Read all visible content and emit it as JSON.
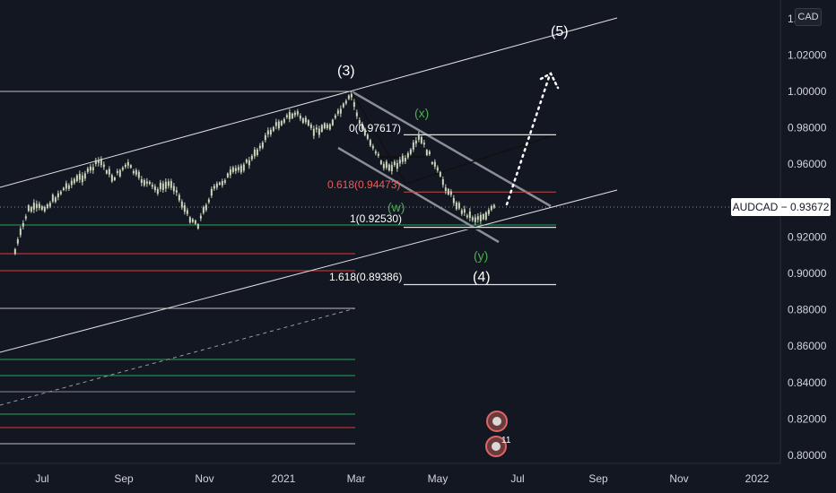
{
  "instrument": {
    "currency": "CAD",
    "symbol": "AUDCAD",
    "separator": "−",
    "last_price": "0.93672"
  },
  "colors": {
    "background": "#131722",
    "candle": "#c8d6b9",
    "channel": "#e0e0e0",
    "gray_channel": "#8a8e96",
    "fib_line": "#e0e0e0",
    "green_level": "#26a65b",
    "red_level": "#e03a3a",
    "fib_618": "#e85d5d",
    "wave_green": "#4caf50",
    "wave_white": "#ffffff"
  },
  "chart_data": {
    "type": "candlestick",
    "x_axis": {
      "tick_labels": [
        "Jul",
        "Sep",
        "Nov",
        "2021",
        "Mar",
        "May",
        "Jul",
        "Sep",
        "Nov",
        "2022"
      ]
    },
    "y_axis": {
      "range": [
        0.795,
        1.05
      ],
      "tick_labels": [
        "1.02000",
        "1.00000",
        "0.98000",
        "0.96000",
        "0.92000",
        "0.90000",
        "0.88000",
        "0.86000",
        "0.84000",
        "0.82000",
        "0.80000"
      ],
      "tick_values": [
        1.02,
        1.0,
        0.98,
        0.96,
        0.92,
        0.9,
        0.88,
        0.86,
        0.84,
        0.82,
        0.8
      ],
      "partial_tick_label": "1.0",
      "partial_tick_value": 1.04
    },
    "price_path": [
      {
        "t": "2020-06-10",
        "price": 0.912
      },
      {
        "t": "2020-06-20",
        "price": 0.935
      },
      {
        "t": "2020-07-05",
        "price": 0.937
      },
      {
        "t": "2020-07-20",
        "price": 0.948
      },
      {
        "t": "2020-08-05",
        "price": 0.955
      },
      {
        "t": "2020-08-15",
        "price": 0.962
      },
      {
        "t": "2020-08-25",
        "price": 0.952
      },
      {
        "t": "2020-09-05",
        "price": 0.96
      },
      {
        "t": "2020-09-15",
        "price": 0.952
      },
      {
        "t": "2020-09-28",
        "price": 0.946
      },
      {
        "t": "2020-10-10",
        "price": 0.95
      },
      {
        "t": "2020-10-22",
        "price": 0.932
      },
      {
        "t": "2020-10-30",
        "price": 0.927
      },
      {
        "t": "2020-11-10",
        "price": 0.945
      },
      {
        "t": "2020-11-25",
        "price": 0.955
      },
      {
        "t": "2020-12-10",
        "price": 0.962
      },
      {
        "t": "2020-12-25",
        "price": 0.978
      },
      {
        "t": "2021-01-05",
        "price": 0.985
      },
      {
        "t": "2021-01-15",
        "price": 0.988
      },
      {
        "t": "2021-01-28",
        "price": 0.978
      },
      {
        "t": "2021-02-10",
        "price": 0.982
      },
      {
        "t": "2021-02-22",
        "price": 0.993
      },
      {
        "t": "2021-02-26",
        "price": 0.998
      },
      {
        "t": "2021-03-05",
        "price": 0.982
      },
      {
        "t": "2021-03-15",
        "price": 0.97
      },
      {
        "t": "2021-03-24",
        "price": 0.958
      },
      {
        "t": "2021-04-02",
        "price": 0.96
      },
      {
        "t": "2021-04-12",
        "price": 0.964
      },
      {
        "t": "2021-04-20",
        "price": 0.975
      },
      {
        "t": "2021-04-30",
        "price": 0.962
      },
      {
        "t": "2021-05-10",
        "price": 0.948
      },
      {
        "t": "2021-05-22",
        "price": 0.935
      },
      {
        "t": "2021-06-02",
        "price": 0.93
      },
      {
        "t": "2021-06-10",
        "price": 0.932
      },
      {
        "t": "2021-06-18",
        "price": 0.9367
      }
    ],
    "last_price": 0.93672
  },
  "annotations": {
    "wave_3": "(3)",
    "wave_5": "(5)",
    "wave_4": "(4)",
    "wave_x": "(x)",
    "wave_w": "(w)",
    "wave_y": "(y)",
    "fib_0": "0(0.97617)",
    "fib_0618": "0.618(0.94473)",
    "fib_1": "1(0.92530)",
    "fib_1618": "1.618(0.89386)",
    "fib_levels": [
      0.97617,
      0.94473,
      0.9253,
      0.89386
    ],
    "badge_top_text": "",
    "badge_bottom_text": "11"
  }
}
